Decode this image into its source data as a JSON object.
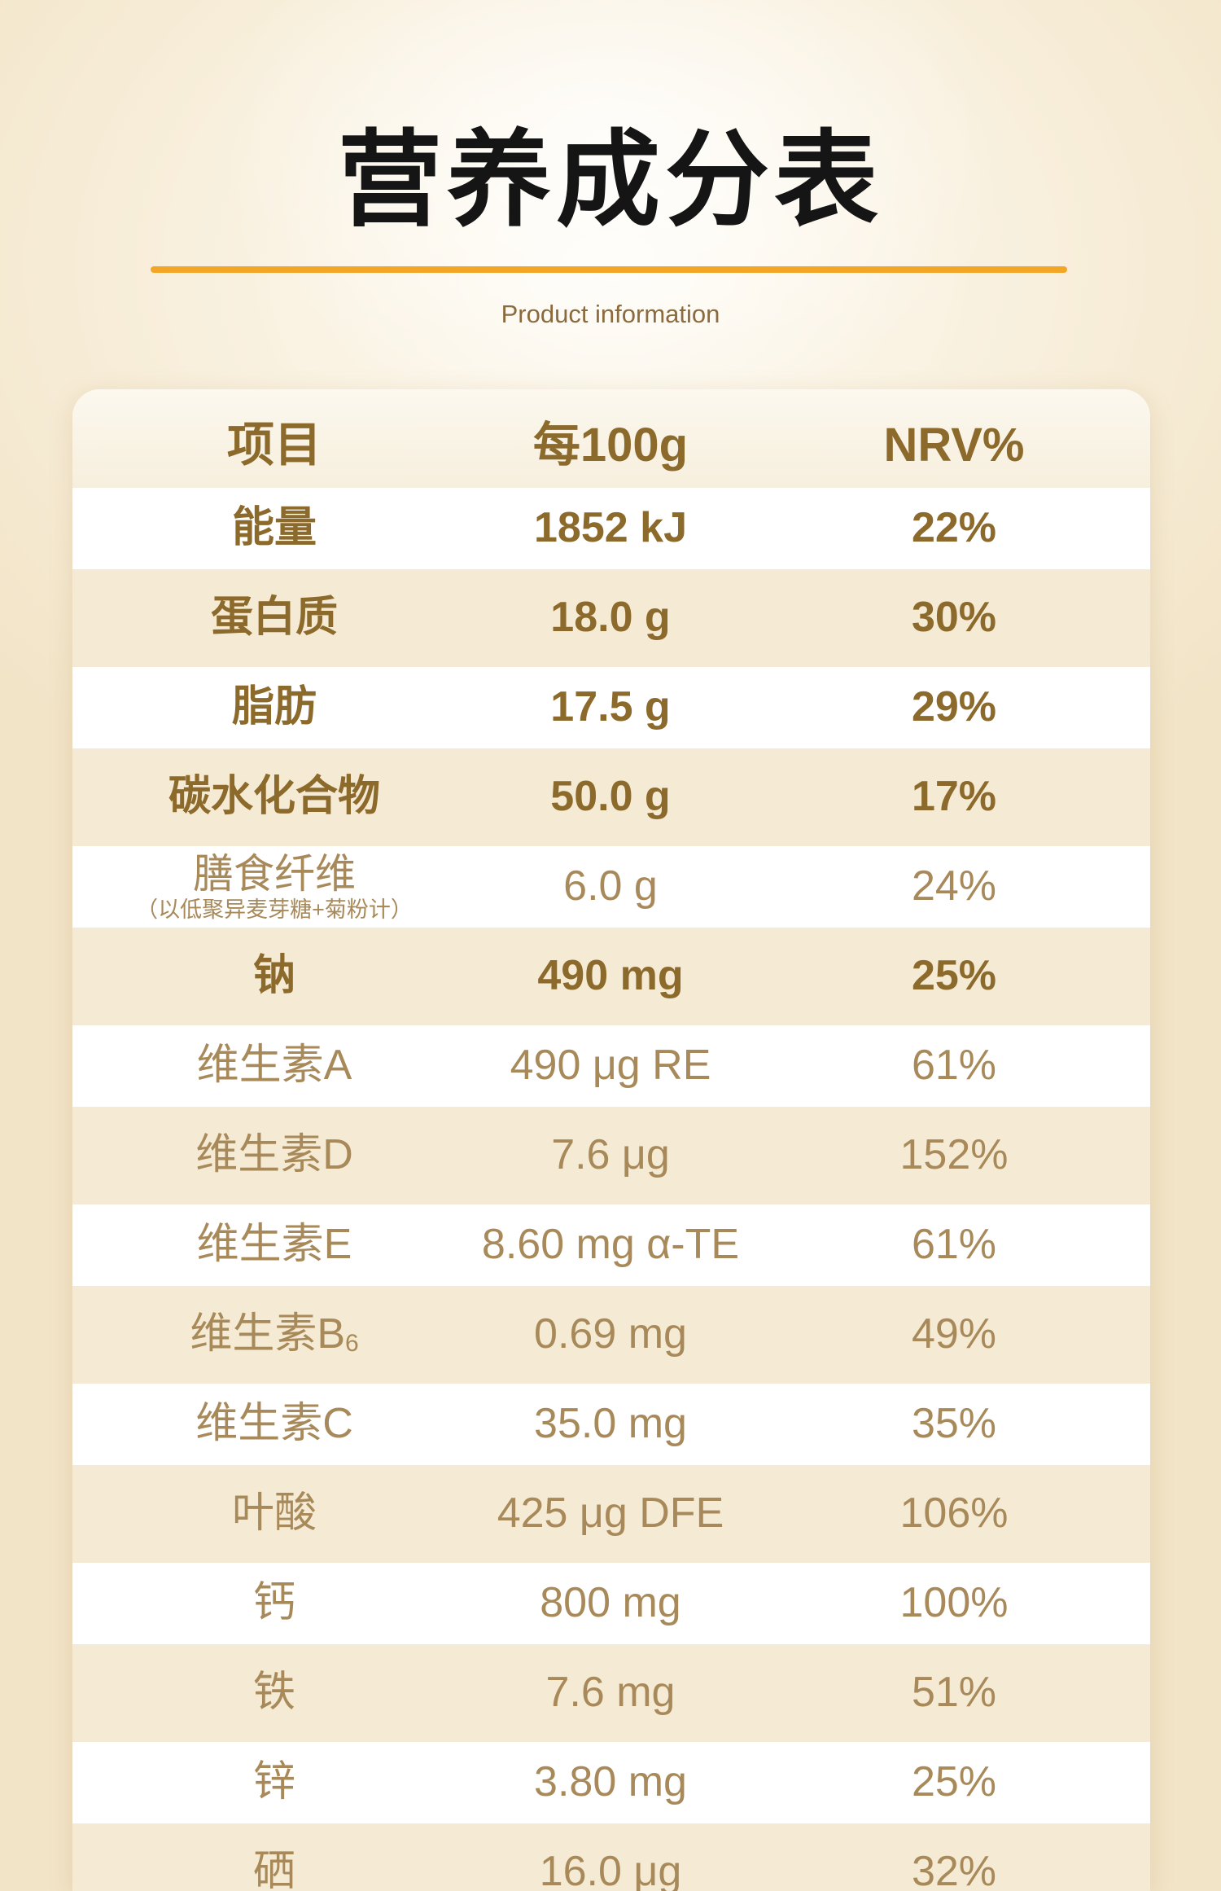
{
  "page": {
    "title": "营养成分表",
    "subtitle": "Product information"
  },
  "colors": {
    "accent": "#f3a625",
    "text_bold": "#8c6a2c",
    "text_light": "#a8895a",
    "row_alt": "#f5ead3",
    "title": "#151515"
  },
  "table": {
    "headers": [
      "项目",
      "每100g",
      "NRV%"
    ],
    "rows": [
      {
        "name": "能量",
        "amount": "1852 kJ",
        "nrv": "22%"
      },
      {
        "name": "蛋白质",
        "amount": "18.0 g",
        "nrv": "30%"
      },
      {
        "name": "脂肪",
        "amount": "17.5 g",
        "nrv": "29%"
      },
      {
        "name": "碳水化合物",
        "amount": "50.0 g",
        "nrv": "17%"
      },
      {
        "name": "膳食纤维",
        "note": "（以低聚异麦芽糖+菊粉计）",
        "amount": "6.0 g",
        "nrv": "24%"
      },
      {
        "name": "钠",
        "amount": "490 mg",
        "nrv": "25%"
      },
      {
        "name": "维生素A",
        "amount": "490 μg RE",
        "nrv": "61%"
      },
      {
        "name": "维生素D",
        "amount": "7.6 μg",
        "nrv": "152%"
      },
      {
        "name": "维生素E",
        "amount": "8.60 mg α-TE",
        "nrv": "61%"
      },
      {
        "name": "维生素B",
        "name_sub": "6",
        "amount": "0.69 mg",
        "nrv": "49%"
      },
      {
        "name": "维生素C",
        "amount": "35.0 mg",
        "nrv": "35%"
      },
      {
        "name": "叶酸",
        "amount": "425 μg DFE",
        "nrv": "106%"
      },
      {
        "name": "钙",
        "amount": "800 mg",
        "nrv": "100%"
      },
      {
        "name": "铁",
        "amount": "7.6 mg",
        "nrv": "51%"
      },
      {
        "name": "锌",
        "amount": "3.80 mg",
        "nrv": "25%"
      },
      {
        "name": "硒",
        "amount": "16.0 μg",
        "nrv": "32%"
      }
    ]
  }
}
